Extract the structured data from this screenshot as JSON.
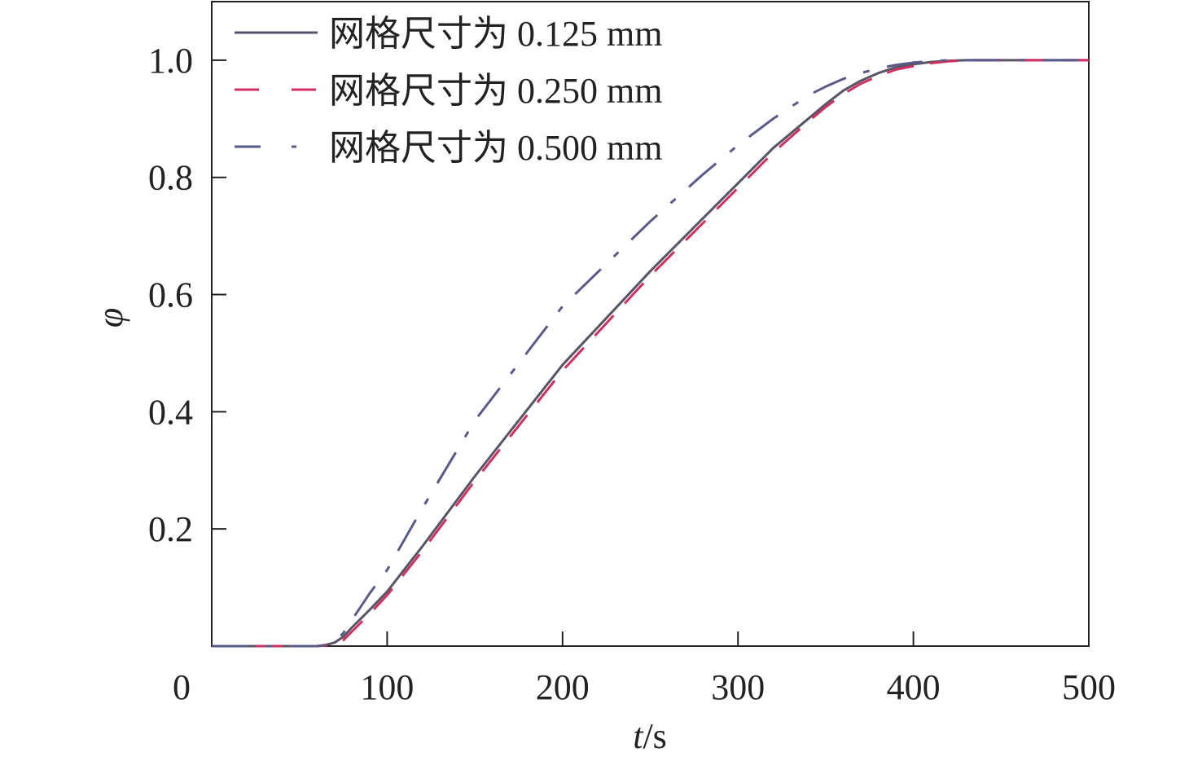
{
  "chart_data": {
    "type": "line",
    "xlabel": {
      "var": "t",
      "unit": "/s"
    },
    "ylabel": "φ",
    "xlim": [
      0,
      500
    ],
    "ylim": [
      0,
      1.1
    ],
    "xticks": [
      0,
      100,
      200,
      300,
      400,
      500
    ],
    "xtick_labels": [
      "0",
      "100",
      "200",
      "300",
      "400",
      "500"
    ],
    "yticks": [
      0.2,
      0.4,
      0.6,
      0.8,
      1.0
    ],
    "ytick_labels": [
      "0.2",
      "0.4",
      "0.6",
      "0.8",
      "1.0"
    ],
    "grid": false,
    "legend_position": "top-left",
    "series": [
      {
        "name": "网格尺寸为 0.125 mm",
        "style": "solid",
        "color": "#555566",
        "x": [
          0,
          60,
          65,
          70,
          75,
          80,
          90,
          100,
          120,
          150,
          200,
          250,
          300,
          320,
          340,
          350,
          360,
          370,
          380,
          390,
          400,
          410,
          420,
          430,
          500
        ],
        "y": [
          0,
          0,
          0.002,
          0.006,
          0.016,
          0.032,
          0.062,
          0.093,
          0.17,
          0.29,
          0.48,
          0.64,
          0.79,
          0.85,
          0.9,
          0.925,
          0.948,
          0.965,
          0.978,
          0.988,
          0.993,
          0.997,
          0.999,
          1.0,
          1.0
        ]
      },
      {
        "name": "网格尺寸为 0.250 mm",
        "style": "dashed",
        "color": "#d03060",
        "x": [
          0,
          60,
          68,
          75,
          80,
          90,
          100,
          120,
          150,
          200,
          250,
          300,
          320,
          340,
          350,
          360,
          370,
          380,
          390,
          400,
          410,
          420,
          430,
          500
        ],
        "y": [
          0,
          0,
          0.002,
          0.01,
          0.025,
          0.055,
          0.087,
          0.162,
          0.282,
          0.47,
          0.632,
          0.782,
          0.842,
          0.895,
          0.92,
          0.942,
          0.96,
          0.973,
          0.984,
          0.99,
          0.995,
          0.998,
          1.0,
          1.0
        ]
      },
      {
        "name": "网格尺寸为 0.500 mm",
        "style": "dashdot",
        "color": "#5a5a88",
        "x": [
          0,
          60,
          65,
          70,
          75,
          80,
          90,
          100,
          120,
          150,
          200,
          250,
          280,
          300,
          320,
          340,
          350,
          360,
          370,
          380,
          390,
          400,
          410,
          420,
          500
        ],
        "y": [
          0,
          0,
          0.002,
          0.008,
          0.022,
          0.045,
          0.09,
          0.13,
          0.235,
          0.385,
          0.58,
          0.725,
          0.805,
          0.855,
          0.9,
          0.94,
          0.955,
          0.968,
          0.978,
          0.986,
          0.992,
          0.996,
          0.998,
          1.0,
          1.0
        ]
      }
    ]
  }
}
